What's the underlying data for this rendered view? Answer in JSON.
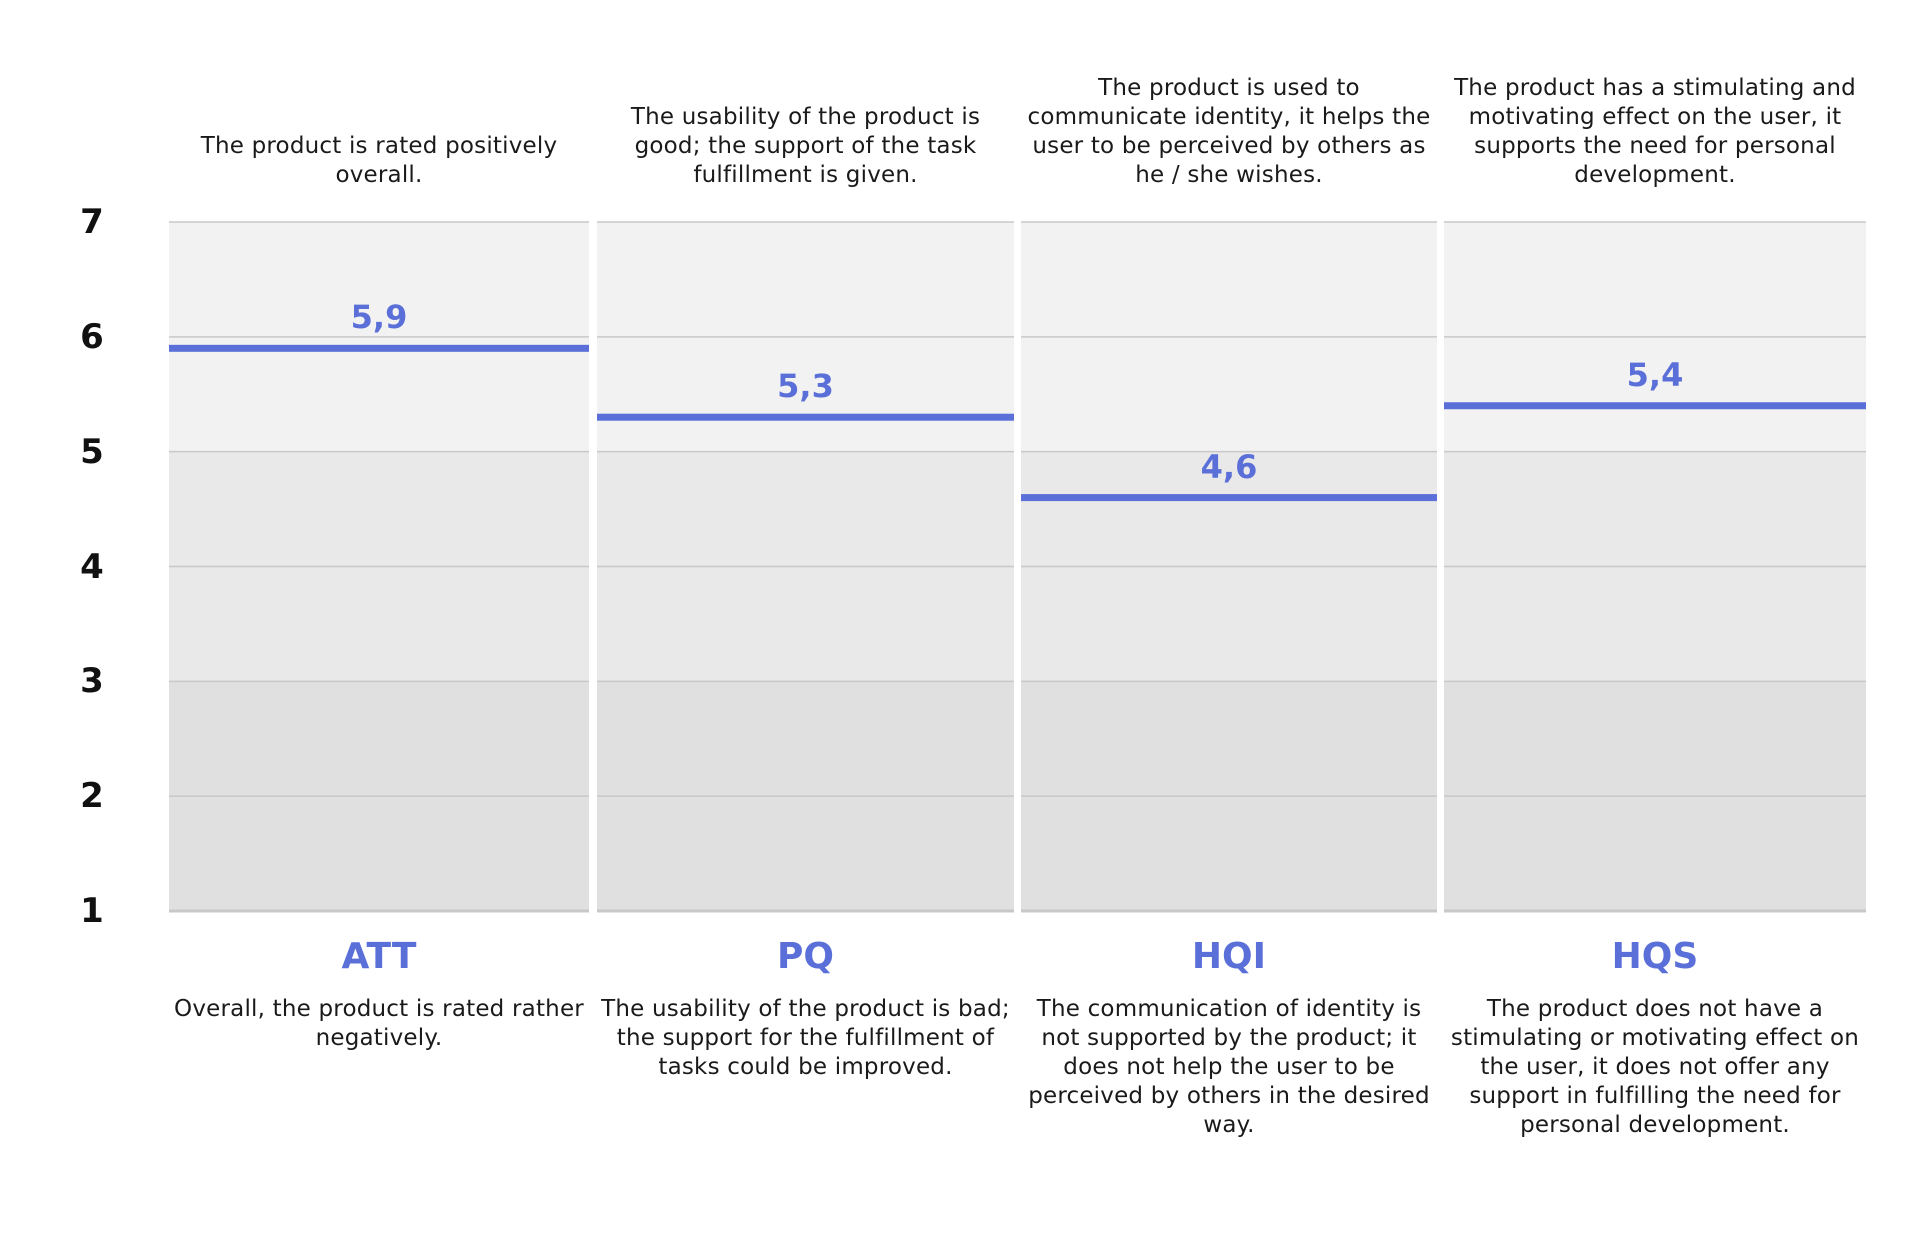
{
  "chart_data": {
    "type": "bar",
    "title": "",
    "xlabel": "",
    "ylabel": "",
    "ylim": [
      1,
      7
    ],
    "yticks": [
      "1",
      "2",
      "3",
      "4",
      "5",
      "6",
      "7"
    ],
    "grid": true,
    "colors": {
      "value_line": "#5b6fd8",
      "band_high": "#f2f2f2",
      "band_mid": "#e9e9e9",
      "band_low": "#e0e0e0",
      "grid": "#c8c8c8"
    },
    "categories": [
      "ATT",
      "PQ",
      "HQI",
      "HQS"
    ],
    "values": [
      5.9,
      5.3,
      4.6,
      5.4
    ],
    "value_labels": [
      "5,9",
      "5,3",
      "4,6",
      "5,4"
    ],
    "top_descriptions": [
      "The product is rated positively overall.",
      "The usability of the product is good; the support of the task fulfillment is given.",
      "The product is used to communicate identity, it helps the user to be perceived by others as he / she wishes.",
      "The product has a stimulating and motivating effect on the user, it supports the need for personal development."
    ],
    "bottom_descriptions": [
      "Overall, the product is rated rather negatively.",
      "The usability of the product is bad; the support for the fulfillment of tasks could be improved.",
      "The communication of identity is not supported by the product; it does not help the user to be perceived by others in the desired way.",
      "The product does not have a stimulating or motivating effect on the user, it does not offer any support in fulfilling the need for personal development."
    ]
  }
}
